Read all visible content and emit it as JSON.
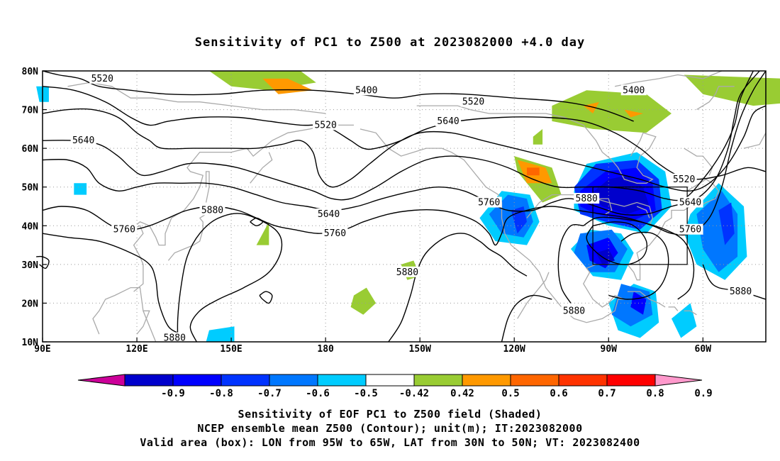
{
  "title": "Sensitivity of PC1 to Z500 at 2023082000 +4.0 day",
  "map": {
    "lon_ticks": [
      {
        "lon": 90,
        "label": "90E"
      },
      {
        "lon": 120,
        "label": "120E"
      },
      {
        "lon": 150,
        "label": "150E"
      },
      {
        "lon": 180,
        "label": "180"
      },
      {
        "lon": 210,
        "label": "150W"
      },
      {
        "lon": 240,
        "label": "120W"
      },
      {
        "lon": 270,
        "label": "90W"
      },
      {
        "lon": 300,
        "label": "60W"
      }
    ],
    "lat_ticks": [
      {
        "lat": 80,
        "label": "80N"
      },
      {
        "lat": 70,
        "label": "70N"
      },
      {
        "lat": 60,
        "label": "60N"
      },
      {
        "lat": 50,
        "label": "50N"
      },
      {
        "lat": 40,
        "label": "40N"
      },
      {
        "lat": 30,
        "label": "30N"
      },
      {
        "lat": 20,
        "label": "20N"
      },
      {
        "lat": 10,
        "label": "10N"
      }
    ],
    "valid_box": {
      "lon_w": 265,
      "lon_e": 295,
      "lat_s": 30,
      "lat_n": 50
    },
    "contour_labels": [
      {
        "text": "5520",
        "lon": 109,
        "lat": 78
      },
      {
        "text": "5400",
        "lon": 193,
        "lat": 75
      },
      {
        "text": "5520",
        "lon": 227,
        "lat": 72
      },
      {
        "text": "5400",
        "lon": 278,
        "lat": 75
      },
      {
        "text": "5520",
        "lon": 180,
        "lat": 66
      },
      {
        "text": "5640",
        "lon": 219,
        "lat": 67
      },
      {
        "text": "5640",
        "lon": 103,
        "lat": 62
      },
      {
        "text": "5520",
        "lon": 294,
        "lat": 52
      },
      {
        "text": "5640",
        "lon": 296,
        "lat": 46
      },
      {
        "text": "5760",
        "lon": 296,
        "lat": 39
      },
      {
        "text": "5880",
        "lon": 144,
        "lat": 44
      },
      {
        "text": "5640",
        "lon": 181,
        "lat": 43
      },
      {
        "text": "5760",
        "lon": 183,
        "lat": 38
      },
      {
        "text": "5760",
        "lon": 116,
        "lat": 39
      },
      {
        "text": "5760",
        "lon": 232,
        "lat": 46
      },
      {
        "text": "5880",
        "lon": 263,
        "lat": 47
      },
      {
        "text": "5880",
        "lon": 206,
        "lat": 28
      },
      {
        "text": "5880",
        "lon": 259,
        "lat": 18
      },
      {
        "text": "5880",
        "lon": 312,
        "lat": 23
      },
      {
        "text": "5880",
        "lon": 132,
        "lat": 11
      }
    ],
    "shaded_regions": [
      {
        "level": -0.9,
        "color": "#0000cc",
        "polys": [
          [
            [
              264,
              48
            ],
            [
              270,
              52
            ],
            [
              276,
              53
            ],
            [
              281,
              50
            ],
            [
              283,
              45
            ],
            [
              276,
              43
            ],
            [
              268,
              45
            ]
          ],
          [
            [
              266,
              33
            ],
            [
              270,
              34
            ],
            [
              272,
              31
            ],
            [
              268,
              30
            ]
          ]
        ]
      },
      {
        "level": -0.8,
        "color": "#0000ff",
        "polys": [
          [
            [
              261,
              49
            ],
            [
              269,
              54
            ],
            [
              279,
              55
            ],
            [
              284,
              51
            ],
            [
              285,
              44
            ],
            [
              277,
              41
            ],
            [
              266,
              43
            ],
            [
              261,
              45
            ]
          ],
          [
            [
              263,
              35
            ],
            [
              270,
              37
            ],
            [
              273,
              33
            ],
            [
              269,
              29
            ],
            [
              264,
              31
            ]
          ],
          [
            [
              278,
              23
            ],
            [
              282,
              21
            ],
            [
              281,
              17
            ],
            [
              277,
              19
            ]
          ]
        ]
      },
      {
        "level": -0.7,
        "color": "#0033ff",
        "polys": [
          [
            [
              259,
              50
            ],
            [
              266,
              56
            ],
            [
              279,
              57
            ],
            [
              286,
              52
            ],
            [
              287,
              44
            ],
            [
              280,
              39
            ],
            [
              269,
              41
            ],
            [
              261,
              43
            ]
          ],
          [
            [
              239,
              44
            ],
            [
              243,
              45
            ],
            [
              244,
              41
            ],
            [
              241,
              38
            ]
          ],
          [
            [
              305,
              44
            ],
            [
              309,
              46
            ],
            [
              310,
              38
            ],
            [
              307,
              35
            ]
          ]
        ]
      },
      {
        "level": -0.6,
        "color": "#0077ff",
        "polys": [
          [
            [
              232,
              43
            ],
            [
              238,
              48
            ],
            [
              244,
              47
            ],
            [
              246,
              41
            ],
            [
              243,
              37
            ],
            [
              236,
              38
            ]
          ],
          [
            [
              261,
              38
            ],
            [
              271,
              39
            ],
            [
              276,
              34
            ],
            [
              272,
              28
            ],
            [
              264,
              28
            ],
            [
              259,
              33
            ]
          ],
          [
            [
              298,
              43
            ],
            [
              306,
              49
            ],
            [
              311,
              43
            ],
            [
              311,
              32
            ],
            [
              305,
              28
            ],
            [
              300,
              34
            ]
          ],
          [
            [
              274,
              25
            ],
            [
              283,
              23
            ],
            [
              284,
              17
            ],
            [
              277,
              14
            ],
            [
              271,
              17
            ]
          ]
        ]
      },
      {
        "level": -0.5,
        "color": "#00ccff",
        "polys": [
          [
            [
              229,
              42
            ],
            [
              236,
              49
            ],
            [
              245,
              48
            ],
            [
              248,
              41
            ],
            [
              244,
              35
            ],
            [
              234,
              36
            ]
          ],
          [
            [
              259,
              49
            ],
            [
              263,
              56
            ],
            [
              279,
              59
            ],
            [
              288,
              54
            ],
            [
              290,
              45
            ],
            [
              282,
              38
            ],
            [
              270,
              40
            ],
            [
              259,
              44
            ]
          ],
          [
            [
              258,
              34
            ],
            [
              264,
              39
            ],
            [
              274,
              38
            ],
            [
              278,
              33
            ],
            [
              274,
              26
            ],
            [
              265,
              27
            ]
          ],
          [
            [
              296,
              43
            ],
            [
              305,
              51
            ],
            [
              313,
              45
            ],
            [
              314,
              32
            ],
            [
              307,
              26
            ],
            [
              298,
              30
            ],
            [
              294,
              38
            ]
          ],
          [
            [
              270,
              20
            ],
            [
              278,
              25
            ],
            [
              285,
              23
            ],
            [
              286,
              15
            ],
            [
              280,
              11
            ],
            [
              273,
              13
            ]
          ],
          [
            [
              290,
              16
            ],
            [
              296,
              20
            ],
            [
              298,
              14
            ],
            [
              293,
              11
            ]
          ],
          [
            [
              88,
              76
            ],
            [
              92,
              76
            ],
            [
              92,
              72
            ],
            [
              89,
              72
            ]
          ],
          [
            [
              100,
              51
            ],
            [
              104,
              51
            ],
            [
              104,
              48
            ],
            [
              100,
              48
            ]
          ],
          [
            [
              143,
              13
            ],
            [
              151,
              14
            ],
            [
              151,
              10
            ],
            [
              142,
              10
            ]
          ]
        ]
      },
      {
        "level": 0.5,
        "color": "#99cc33",
        "polys": [
          [
            [
              143,
              80
            ],
            [
              172,
              80
            ],
            [
              177,
              77
            ],
            [
              162,
              75
            ],
            [
              150,
              76
            ]
          ],
          [
            [
              240,
              58
            ],
            [
              252,
              55
            ],
            [
              255,
              48
            ],
            [
              249,
              46
            ],
            [
              241,
              54
            ]
          ],
          [
            [
              252,
              71
            ],
            [
              263,
              75
            ],
            [
              282,
              74
            ],
            [
              290,
              69
            ],
            [
              282,
              64
            ],
            [
              265,
              65
            ],
            [
              252,
              67
            ]
          ],
          [
            [
              294,
              79
            ],
            [
              326,
              78
            ],
            [
              330,
              72
            ],
            [
              316,
              71
            ],
            [
              300,
              74
            ]
          ],
          [
            [
              204,
              30
            ],
            [
              208,
              31
            ],
            [
              210,
              27
            ],
            [
              206,
              26
            ]
          ],
          [
            [
              189,
              22
            ],
            [
              193,
              24
            ],
            [
              196,
              20
            ],
            [
              192,
              17
            ],
            [
              188,
              19
            ]
          ],
          [
            [
              246,
              63
            ],
            [
              249,
              65
            ],
            [
              249,
              61
            ],
            [
              246,
              61
            ]
          ],
          [
            [
              162,
              41
            ],
            [
              162,
              35
            ],
            [
              158,
              35
            ]
          ]
        ]
      },
      {
        "level": 0.6,
        "color": "#ff9900",
        "polys": [
          [
            [
              160,
              78
            ],
            [
              168,
              78
            ],
            [
              176,
              75
            ],
            [
              165,
              74
            ]
          ],
          [
            [
              241,
              57
            ],
            [
              250,
              55
            ],
            [
              252,
              51
            ],
            [
              244,
              51
            ]
          ],
          [
            [
              262,
              71
            ],
            [
              267,
              72
            ],
            [
              265,
              69
            ]
          ],
          [
            [
              275,
              70
            ],
            [
              281,
              69
            ],
            [
              277,
              68
            ]
          ]
        ]
      },
      {
        "level": 0.7,
        "color": "#ff6600",
        "polys": [
          [
            [
              244,
              55
            ],
            [
              248,
              55
            ],
            [
              248,
              53
            ],
            [
              244,
              53
            ]
          ]
        ]
      }
    ],
    "colorbar": {
      "colors": [
        "#cc0099",
        "#0000cc",
        "#0000ff",
        "#0033ff",
        "#0077ff",
        "#00ccff",
        "#ffffff",
        "#99cc33",
        "#ff9900",
        "#ff6600",
        "#ff3300",
        "#ff0000",
        "#ff99cc"
      ],
      "labels": [
        "-0.9",
        "-0.8",
        "-0.7",
        "-0.6",
        "-0.5",
        "-0.42",
        "0.42",
        "0.5",
        "0.6",
        "0.7",
        "0.8",
        "0.9"
      ]
    }
  },
  "footer": {
    "line1": "Sensitivity of EOF PC1 to Z500 field (Shaded)",
    "line2": "NCEP ensemble mean Z500 (Contour); unit(m); IT:2023082000",
    "line3": "Valid area (box): LON from 95W to 65W, LAT from 30N to 50N; VT: 2023082400"
  }
}
